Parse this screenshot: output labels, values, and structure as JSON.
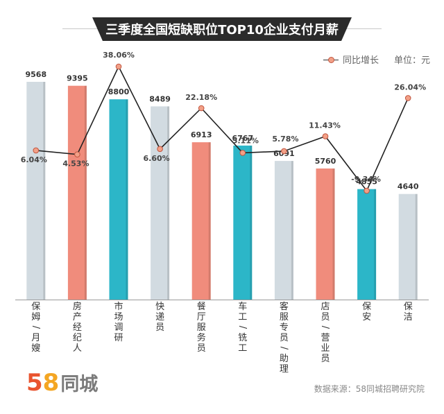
{
  "title": "三季度全国短缺职位TOP10企业支付月薪",
  "legend": {
    "series_label": "同比增长",
    "unit": "单位：元"
  },
  "logo": {
    "five": "5",
    "eight": "8",
    "name": "同城"
  },
  "source": "数据来源：58同城招聘研究院",
  "colors": {
    "gray_bar": "#d2dbe1",
    "red_bar": "#f08c7c",
    "teal_bar": "#2cb6c8",
    "line": "#222222",
    "marker_fill": "#f2a087",
    "marker_stroke": "#c0553f"
  },
  "chart_data": {
    "type": "bar",
    "title": "三季度全国短缺职位TOP10企业支付月薪",
    "categories": [
      "保姆/月嫂",
      "房产经纪人",
      "市场调研",
      "快递员",
      "餐厅服务员",
      "车工/铣工",
      "客服专员/助理",
      "店员/营业员",
      "保安",
      "保洁"
    ],
    "category_lines": [
      [
        "保",
        "姆",
        "/",
        "月",
        "嫂"
      ],
      [
        "房",
        "产",
        "经",
        "纪",
        "人"
      ],
      [
        "市",
        "场",
        "调",
        "研"
      ],
      [
        "快",
        "递",
        "员"
      ],
      [
        "餐",
        "厅",
        "服",
        "务",
        "员"
      ],
      [
        "车",
        "工",
        "/",
        "铣",
        "工"
      ],
      [
        "客",
        "服",
        "专",
        "员",
        "/",
        "助",
        "理"
      ],
      [
        "店",
        "员",
        "/",
        "营",
        "业",
        "员"
      ],
      [
        "保",
        "安"
      ],
      [
        "保",
        "洁"
      ]
    ],
    "series": [
      {
        "name": "月薪",
        "unit": "元",
        "values": [
          9568,
          9395,
          8800,
          8489,
          6913,
          6767,
          6091,
          5760,
          4855,
          4640
        ],
        "value_labels": [
          "9568",
          "9395",
          "8800",
          "8489",
          "6913",
          "6767",
          "6091",
          "5760",
          "4855",
          "4640"
        ],
        "bar_colors": [
          "gray",
          "red",
          "teal",
          "gray",
          "red",
          "teal",
          "gray",
          "red",
          "teal",
          "gray"
        ]
      },
      {
        "name": "同比增长",
        "unit": "%",
        "values": [
          6.04,
          4.53,
          38.06,
          6.6,
          22.18,
          5.11,
          5.78,
          11.43,
          -9.34,
          26.04
        ],
        "value_labels": [
          "6.04%",
          "4.53%",
          "38.06%",
          "6.60%",
          "22.18%",
          "5.11%",
          "5.78%",
          "11.43%",
          "-9.34%",
          "26.04%"
        ]
      }
    ],
    "ylim": [
      0,
      10000
    ],
    "y2lim": [
      -20,
      50
    ],
    "legend": "top-right"
  }
}
